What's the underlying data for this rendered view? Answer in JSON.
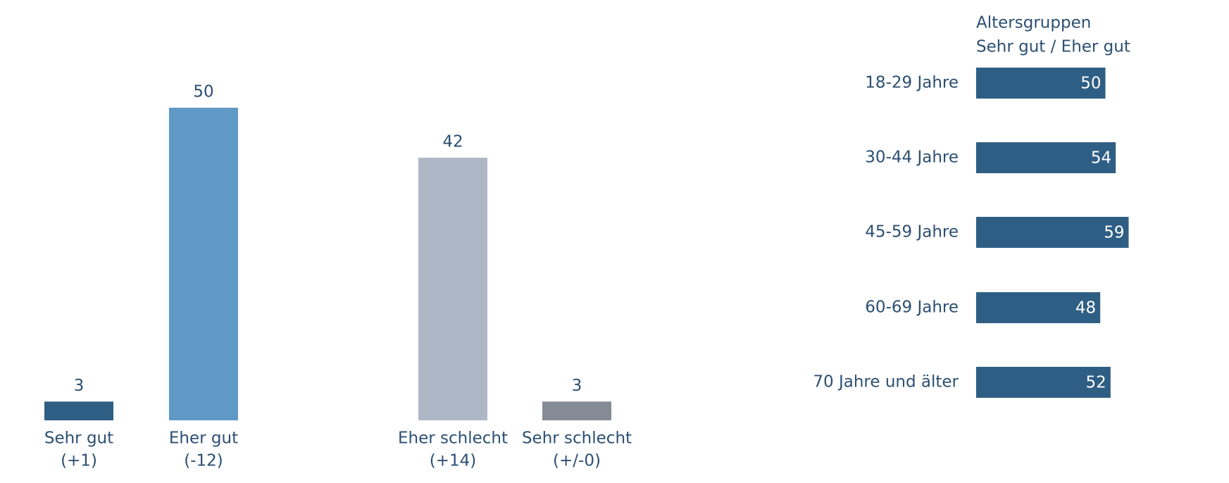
{
  "chart_data": [
    {
      "type": "bar",
      "categories": [
        "Sehr gut",
        "Eher gut",
        "Eher schlecht",
        "Sehr schlecht"
      ],
      "sublabels": [
        "(+1)",
        "(-12)",
        "(+14)",
        "(+/-0)"
      ],
      "values": [
        3,
        50,
        42,
        3
      ],
      "colors": [
        "#2f5e84",
        "#6199c6",
        "#adb7c5",
        "#858b95"
      ]
    },
    {
      "type": "barh",
      "title": "Altersgruppen",
      "subtitle": "Sehr gut / Eher gut",
      "categories": [
        "18-29 Jahre",
        "30-44 Jahre",
        "45-59 Jahre",
        "60-69 Jahre",
        "70 Jahre und älter"
      ],
      "values": [
        50,
        54,
        59,
        48,
        52
      ],
      "color": "#2f5e84"
    }
  ]
}
